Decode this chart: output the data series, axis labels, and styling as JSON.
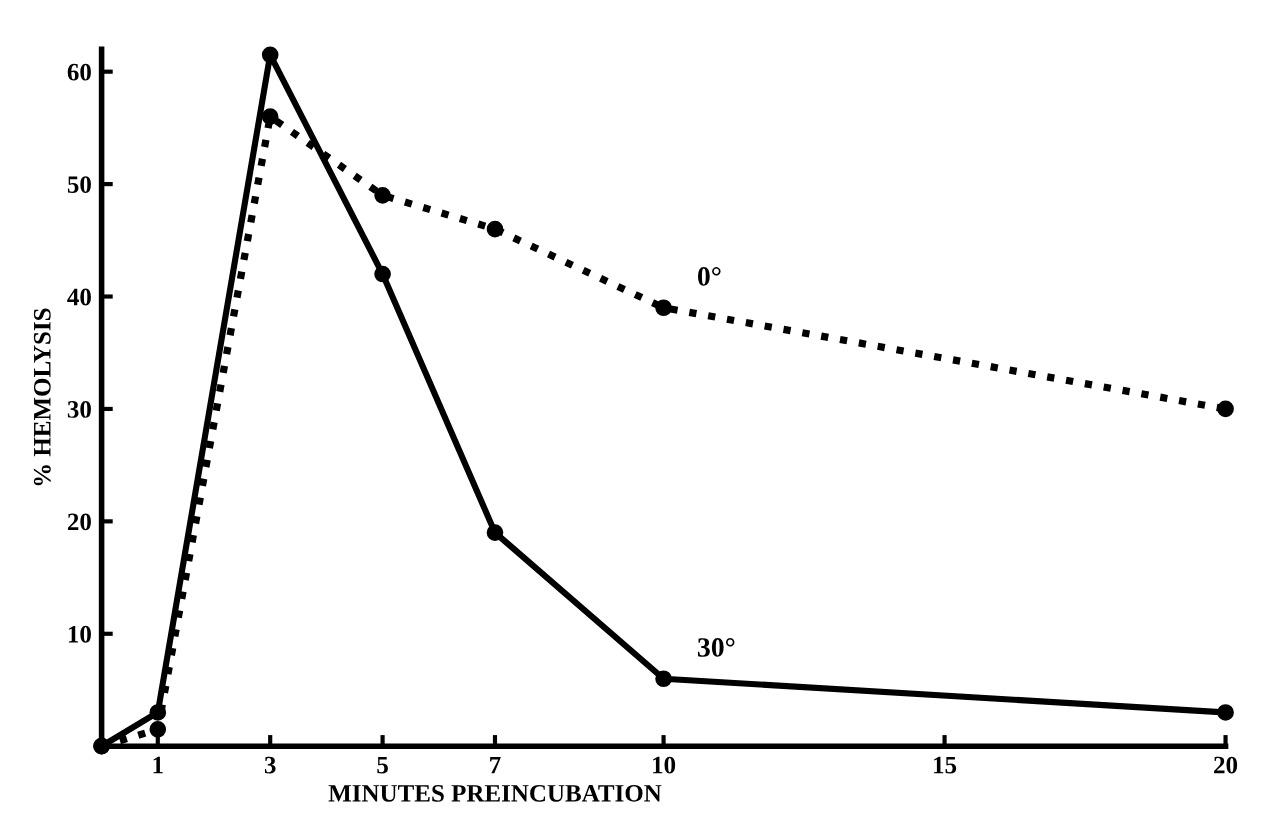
{
  "chart_data": {
    "type": "line",
    "xlabel": "MINUTES PREINCUBATION",
    "ylabel": "% HEMOLYSIS",
    "x": [
      0,
      1,
      3,
      5,
      7,
      10,
      20
    ],
    "series": [
      {
        "name": "30°",
        "color": "#000000",
        "line_style": "solid",
        "values": [
          0,
          3,
          61.5,
          42,
          19,
          6,
          3
        ]
      },
      {
        "name": "0°",
        "color": "#000000",
        "line_style": "dotted",
        "values": [
          0,
          1.5,
          56,
          49,
          46,
          39,
          30
        ]
      }
    ],
    "xlim": [
      0,
      20
    ],
    "xticks": [
      1,
      3,
      5,
      7,
      10,
      15,
      20
    ],
    "ylim": [
      0,
      62
    ],
    "yticks": [
      10,
      20,
      30,
      40,
      50,
      60
    ],
    "marker": "circle",
    "grid": false,
    "legend": false
  }
}
